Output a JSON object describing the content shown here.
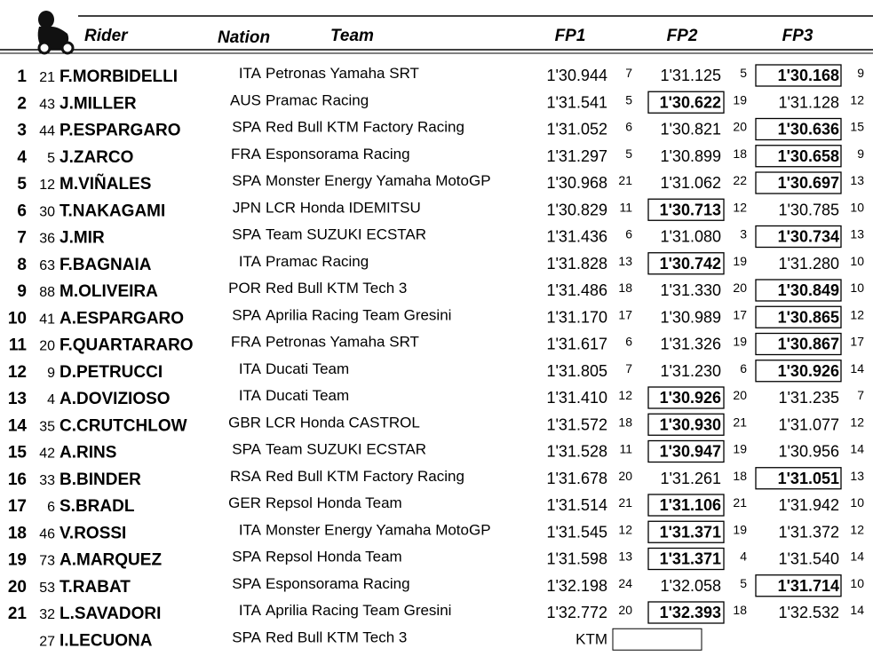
{
  "header": {
    "rider": "Rider",
    "nation": "Nation",
    "team": "Team",
    "fp1": "FP1",
    "fp2": "FP2",
    "fp3": "FP3"
  },
  "rows": [
    {
      "pos": 1,
      "number": 21,
      "rider": "F.MORBIDELLI",
      "nation": "ITA",
      "team": "Petronas Yamaha SRT",
      "fp1": "1'30.944",
      "fp1_rank": 7,
      "fp2": "1'31.125",
      "fp2_rank": 5,
      "fp3": "1'30.168",
      "fp3_rank": 9,
      "best": "fp3"
    },
    {
      "pos": 2,
      "number": 43,
      "rider": "J.MILLER",
      "nation": "AUS",
      "team": "Pramac Racing",
      "fp1": "1'31.541",
      "fp1_rank": 5,
      "fp2": "1'30.622",
      "fp2_rank": 19,
      "fp3": "1'31.128",
      "fp3_rank": 12,
      "best": "fp2"
    },
    {
      "pos": 3,
      "number": 44,
      "rider": "P.ESPARGARO",
      "nation": "SPA",
      "team": "Red Bull KTM Factory Racing",
      "fp1": "1'31.052",
      "fp1_rank": 6,
      "fp2": "1'30.821",
      "fp2_rank": 20,
      "fp3": "1'30.636",
      "fp3_rank": 15,
      "best": "fp3"
    },
    {
      "pos": 4,
      "number": 5,
      "rider": "J.ZARCO",
      "nation": "FRA",
      "team": "Esponsorama Racing",
      "fp1": "1'31.297",
      "fp1_rank": 5,
      "fp2": "1'30.899",
      "fp2_rank": 18,
      "fp3": "1'30.658",
      "fp3_rank": 9,
      "best": "fp3"
    },
    {
      "pos": 5,
      "number": 12,
      "rider": "M.VIÑALES",
      "nation": "SPA",
      "team": "Monster Energy Yamaha MotoGP",
      "fp1": "1'30.968",
      "fp1_rank": 21,
      "fp2": "1'31.062",
      "fp2_rank": 22,
      "fp3": "1'30.697",
      "fp3_rank": 13,
      "best": "fp3"
    },
    {
      "pos": 6,
      "number": 30,
      "rider": "T.NAKAGAMI",
      "nation": "JPN",
      "team": "LCR Honda IDEMITSU",
      "fp1": "1'30.829",
      "fp1_rank": 11,
      "fp2": "1'30.713",
      "fp2_rank": 12,
      "fp3": "1'30.785",
      "fp3_rank": 10,
      "best": "fp2"
    },
    {
      "pos": 7,
      "number": 36,
      "rider": "J.MIR",
      "nation": "SPA",
      "team": "Team SUZUKI ECSTAR",
      "fp1": "1'31.436",
      "fp1_rank": 6,
      "fp2": "1'31.080",
      "fp2_rank": 3,
      "fp3": "1'30.734",
      "fp3_rank": 13,
      "best": "fp3"
    },
    {
      "pos": 8,
      "number": 63,
      "rider": "F.BAGNAIA",
      "nation": "ITA",
      "team": "Pramac Racing",
      "fp1": "1'31.828",
      "fp1_rank": 13,
      "fp2": "1'30.742",
      "fp2_rank": 19,
      "fp3": "1'31.280",
      "fp3_rank": 10,
      "best": "fp2"
    },
    {
      "pos": 9,
      "number": 88,
      "rider": "M.OLIVEIRA",
      "nation": "POR",
      "team": "Red Bull KTM Tech 3",
      "fp1": "1'31.486",
      "fp1_rank": 18,
      "fp2": "1'31.330",
      "fp2_rank": 20,
      "fp3": "1'30.849",
      "fp3_rank": 10,
      "best": "fp3"
    },
    {
      "pos": 10,
      "number": 41,
      "rider": "A.ESPARGARO",
      "nation": "SPA",
      "team": "Aprilia Racing Team Gresini",
      "fp1": "1'31.170",
      "fp1_rank": 17,
      "fp2": "1'30.989",
      "fp2_rank": 17,
      "fp3": "1'30.865",
      "fp3_rank": 12,
      "best": "fp3"
    },
    {
      "pos": 11,
      "number": 20,
      "rider": "F.QUARTARARO",
      "nation": "FRA",
      "team": "Petronas Yamaha SRT",
      "fp1": "1'31.617",
      "fp1_rank": 6,
      "fp2": "1'31.326",
      "fp2_rank": 19,
      "fp3": "1'30.867",
      "fp3_rank": 17,
      "best": "fp3"
    },
    {
      "pos": 12,
      "number": 9,
      "rider": "D.PETRUCCI",
      "nation": "ITA",
      "team": "Ducati Team",
      "fp1": "1'31.805",
      "fp1_rank": 7,
      "fp2": "1'31.230",
      "fp2_rank": 6,
      "fp3": "1'30.926",
      "fp3_rank": 14,
      "best": "fp3"
    },
    {
      "pos": 13,
      "number": 4,
      "rider": "A.DOVIZIOSO",
      "nation": "ITA",
      "team": "Ducati Team",
      "fp1": "1'31.410",
      "fp1_rank": 12,
      "fp2": "1'30.926",
      "fp2_rank": 20,
      "fp3": "1'31.235",
      "fp3_rank": 7,
      "best": "fp2"
    },
    {
      "pos": 14,
      "number": 35,
      "rider": "C.CRUTCHLOW",
      "nation": "GBR",
      "team": "LCR Honda CASTROL",
      "fp1": "1'31.572",
      "fp1_rank": 18,
      "fp2": "1'30.930",
      "fp2_rank": 21,
      "fp3": "1'31.077",
      "fp3_rank": 12,
      "best": "fp2"
    },
    {
      "pos": 15,
      "number": 42,
      "rider": "A.RINS",
      "nation": "SPA",
      "team": "Team SUZUKI ECSTAR",
      "fp1": "1'31.528",
      "fp1_rank": 11,
      "fp2": "1'30.947",
      "fp2_rank": 19,
      "fp3": "1'30.956",
      "fp3_rank": 14,
      "best": "fp2"
    },
    {
      "pos": 16,
      "number": 33,
      "rider": "B.BINDER",
      "nation": "RSA",
      "team": "Red Bull KTM Factory Racing",
      "fp1": "1'31.678",
      "fp1_rank": 20,
      "fp2": "1'31.261",
      "fp2_rank": 18,
      "fp3": "1'31.051",
      "fp3_rank": 13,
      "best": "fp3"
    },
    {
      "pos": 17,
      "number": 6,
      "rider": "S.BRADL",
      "nation": "GER",
      "team": "Repsol Honda Team",
      "fp1": "1'31.514",
      "fp1_rank": 21,
      "fp2": "1'31.106",
      "fp2_rank": 21,
      "fp3": "1'31.942",
      "fp3_rank": 10,
      "best": "fp2"
    },
    {
      "pos": 18,
      "number": 46,
      "rider": "V.ROSSI",
      "nation": "ITA",
      "team": "Monster Energy Yamaha MotoGP",
      "fp1": "1'31.545",
      "fp1_rank": 12,
      "fp2": "1'31.371",
      "fp2_rank": 19,
      "fp3": "1'31.372",
      "fp3_rank": 12,
      "best": "fp2"
    },
    {
      "pos": 19,
      "number": 73,
      "rider": "A.MARQUEZ",
      "nation": "SPA",
      "team": "Repsol Honda Team",
      "fp1": "1'31.598",
      "fp1_rank": 13,
      "fp2": "1'31.371",
      "fp2_rank": 4,
      "fp3": "1'31.540",
      "fp3_rank": 14,
      "best": "fp2"
    },
    {
      "pos": 20,
      "number": 53,
      "rider": "T.RABAT",
      "nation": "SPA",
      "team": "Esponsorama Racing",
      "fp1": "1'32.198",
      "fp1_rank": 24,
      "fp2": "1'32.058",
      "fp2_rank": 5,
      "fp3": "1'31.714",
      "fp3_rank": 10,
      "best": "fp3"
    },
    {
      "pos": 21,
      "number": 32,
      "rider": "L.SAVADORI",
      "nation": "ITA",
      "team": "Aprilia Racing Team Gresini",
      "fp1": "1'32.772",
      "fp1_rank": 20,
      "fp2": "1'32.393",
      "fp2_rank": 18,
      "fp3": "1'32.532",
      "fp3_rank": 14,
      "best": "fp2"
    },
    {
      "number": 27,
      "rider": "I.LECUONA",
      "nation": "SPA",
      "team": "Red Bull KTM Tech 3",
      "note": "KTM",
      "best": "fp2"
    }
  ]
}
